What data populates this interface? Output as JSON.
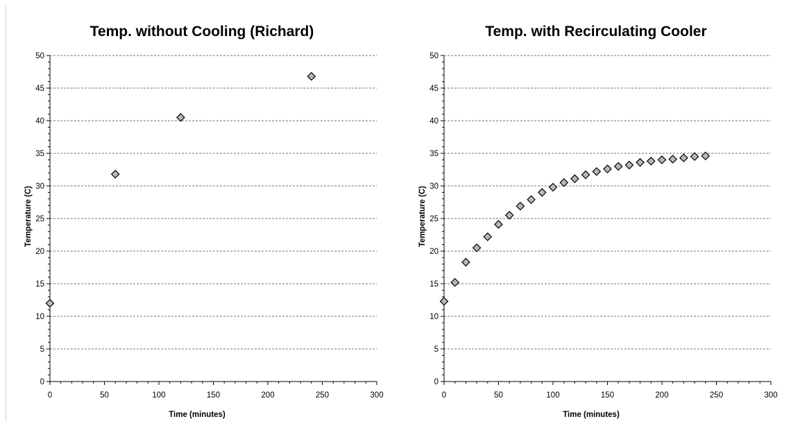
{
  "chart_data": [
    {
      "type": "scatter",
      "title": "Temp. without Cooling (Richard)",
      "xlabel": "Time (minutes)",
      "ylabel": "Temperature (C)",
      "xlim": [
        0,
        300
      ],
      "ylim": [
        0,
        50
      ],
      "x_ticks": [
        0,
        50,
        100,
        150,
        200,
        250,
        300
      ],
      "y_ticks": [
        0,
        5,
        10,
        15,
        20,
        25,
        30,
        35,
        40,
        45,
        50
      ],
      "grid": "horizontal dashed",
      "marker": "diamond",
      "marker_color": "#b8b8b8",
      "series": [
        {
          "x": [
            0,
            60,
            120,
            240
          ],
          "y": [
            12.0,
            31.8,
            40.5,
            46.8
          ]
        }
      ]
    },
    {
      "type": "scatter",
      "title": "Temp. with Recirculating Cooler",
      "xlabel": "Time (minutes)",
      "ylabel": "Temperature (C)",
      "xlim": [
        0,
        300
      ],
      "ylim": [
        0,
        50
      ],
      "x_ticks": [
        0,
        50,
        100,
        150,
        200,
        250,
        300
      ],
      "y_ticks": [
        0,
        5,
        10,
        15,
        20,
        25,
        30,
        35,
        40,
        45,
        50
      ],
      "grid": "horizontal dashed",
      "marker": "diamond",
      "marker_color": "#b8b8b8",
      "series": [
        {
          "x": [
            0,
            10,
            20,
            30,
            40,
            50,
            60,
            70,
            80,
            90,
            100,
            110,
            120,
            130,
            140,
            150,
            160,
            170,
            180,
            190,
            200,
            210,
            220,
            230,
            240
          ],
          "y": [
            12.3,
            15.2,
            18.3,
            20.5,
            22.2,
            24.1,
            25.5,
            26.9,
            27.9,
            29.0,
            29.8,
            30.5,
            31.1,
            31.7,
            32.2,
            32.6,
            33.0,
            33.2,
            33.6,
            33.8,
            34.0,
            34.1,
            34.3,
            34.5,
            34.6
          ]
        }
      ]
    }
  ]
}
